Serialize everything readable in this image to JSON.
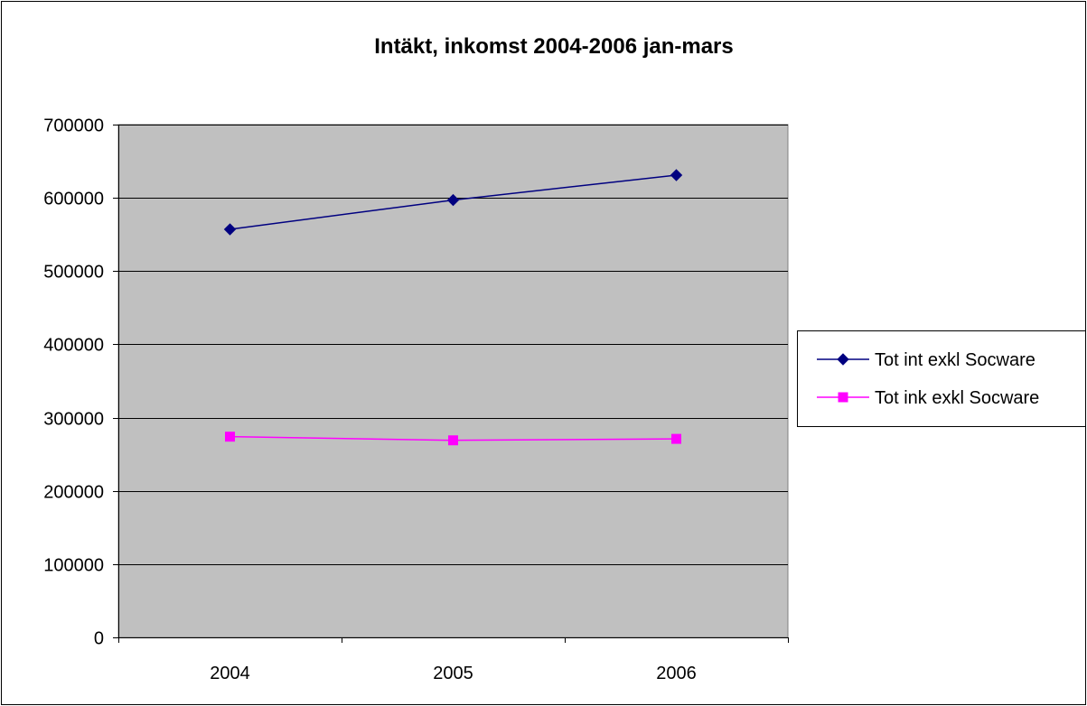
{
  "chart_data": {
    "type": "line",
    "title": "Intäkt, inkomst 2004-2006 jan-mars",
    "xlabel": "",
    "ylabel": "",
    "categories": [
      "2004",
      "2005",
      "2006"
    ],
    "ylim": [
      0,
      700000
    ],
    "yticks": [
      0,
      100000,
      200000,
      300000,
      400000,
      500000,
      600000,
      700000
    ],
    "grid": true,
    "legend_position": "right",
    "plot_background": "#c0c0c0",
    "series": [
      {
        "name": "Tot int exkl Socware",
        "values": [
          557000,
          597000,
          631000
        ],
        "color": "#000080",
        "marker": "diamond"
      },
      {
        "name": "Tot ink exkl Socware",
        "values": [
          274000,
          269000,
          271000
        ],
        "color": "#ff00ff",
        "marker": "square"
      }
    ]
  }
}
